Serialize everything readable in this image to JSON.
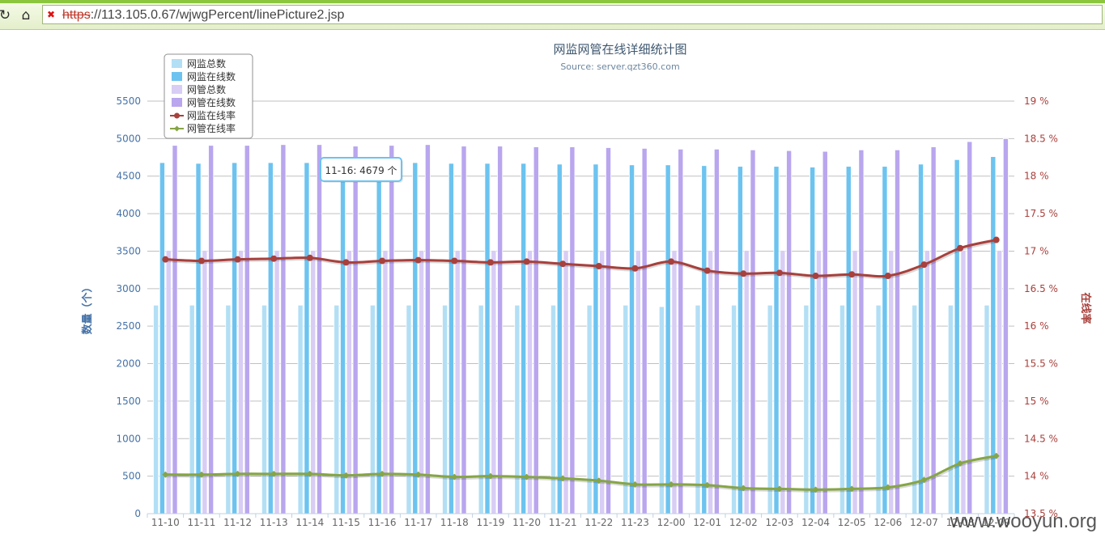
{
  "browser": {
    "url_scheme": "https",
    "url_rest": "://113.105.0.67/wjwgPercent/linePicture2.jsp"
  },
  "watermark": "www.wooyun.org",
  "chart_data": {
    "type": "bar",
    "title": "网监网管在线详细统计图",
    "subtitle": "Source: server.qzt360.com",
    "ylabel": "数量（个）",
    "ylabel_right": "在线率",
    "ylim": [
      0,
      5500
    ],
    "y_ticks": [
      0,
      500,
      1000,
      1500,
      2000,
      2500,
      3000,
      3500,
      4000,
      4500,
      5000,
      5500
    ],
    "ylim_right": [
      13.5,
      19
    ],
    "y_ticks_right": [
      "13.5 %",
      "14 %",
      "14.5 %",
      "15 %",
      "15.5 %",
      "16 %",
      "16.5 %",
      "17 %",
      "17.5 %",
      "18 %",
      "18.5 %",
      "19 %"
    ],
    "grid": true,
    "legend_position": "top-left",
    "categories": [
      "11-10",
      "11-11",
      "11-12",
      "11-13",
      "11-14",
      "11-15",
      "11-16",
      "11-17",
      "11-18",
      "11-19",
      "11-20",
      "11-21",
      "11-22",
      "11-23",
      "12-00",
      "12-01",
      "12-02",
      "12-03",
      "12-04",
      "12-05",
      "12-06",
      "12-07",
      "12-08",
      "12-09"
    ],
    "series": [
      {
        "name": "网监总数",
        "kind": "bar",
        "color": "#b3dff5",
        "values": [
          2780,
          2780,
          2780,
          2780,
          2780,
          2780,
          2780,
          2780,
          2780,
          2780,
          2780,
          2780,
          2780,
          2780,
          2760,
          2780,
          2780,
          2780,
          2780,
          2780,
          2780,
          2780,
          2780,
          2780
        ]
      },
      {
        "name": "网监在线数",
        "kind": "bar",
        "color": "#6cc3ef",
        "values": [
          4680,
          4670,
          4680,
          4680,
          4680,
          4670,
          4679,
          4680,
          4670,
          4670,
          4670,
          4660,
          4660,
          4650,
          4650,
          4640,
          4630,
          4630,
          4620,
          4630,
          4630,
          4660,
          4720,
          4760
        ]
      },
      {
        "name": "网管总数",
        "kind": "bar",
        "color": "#d8cdf5",
        "values": [
          3510,
          3510,
          3510,
          3510,
          3510,
          3510,
          3510,
          3510,
          3510,
          3510,
          3510,
          3510,
          3510,
          3510,
          3510,
          3510,
          3510,
          3510,
          3510,
          3510,
          3510,
          3510,
          3510,
          3510
        ]
      },
      {
        "name": "网管在线数",
        "kind": "bar",
        "color": "#b9a6ee",
        "values": [
          4910,
          4910,
          4910,
          4920,
          4920,
          4900,
          4910,
          4920,
          4900,
          4900,
          4890,
          4890,
          4880,
          4870,
          4860,
          4860,
          4850,
          4840,
          4830,
          4850,
          4850,
          4890,
          4960,
          5000
        ]
      },
      {
        "name": "网监在线率",
        "kind": "line",
        "axis": "right",
        "color": "#a8403c",
        "marker": "circle",
        "values": [
          16.89,
          16.87,
          16.89,
          16.9,
          16.91,
          16.85,
          16.87,
          16.88,
          16.87,
          16.85,
          16.86,
          16.83,
          16.8,
          16.77,
          16.86,
          16.74,
          16.7,
          16.71,
          16.67,
          16.69,
          16.67,
          16.82,
          17.04,
          17.15
        ]
      },
      {
        "name": "网管在线率",
        "kind": "line",
        "axis": "right",
        "color": "#86a545",
        "marker": "diamond",
        "values": [
          14.02,
          14.02,
          14.03,
          14.03,
          14.03,
          14.01,
          14.03,
          14.02,
          13.99,
          14.0,
          13.99,
          13.97,
          13.94,
          13.89,
          13.89,
          13.88,
          13.84,
          13.83,
          13.82,
          13.83,
          13.85,
          13.95,
          14.17,
          14.27
        ]
      }
    ],
    "tooltip": {
      "text": "11-16: 4679 个"
    }
  }
}
